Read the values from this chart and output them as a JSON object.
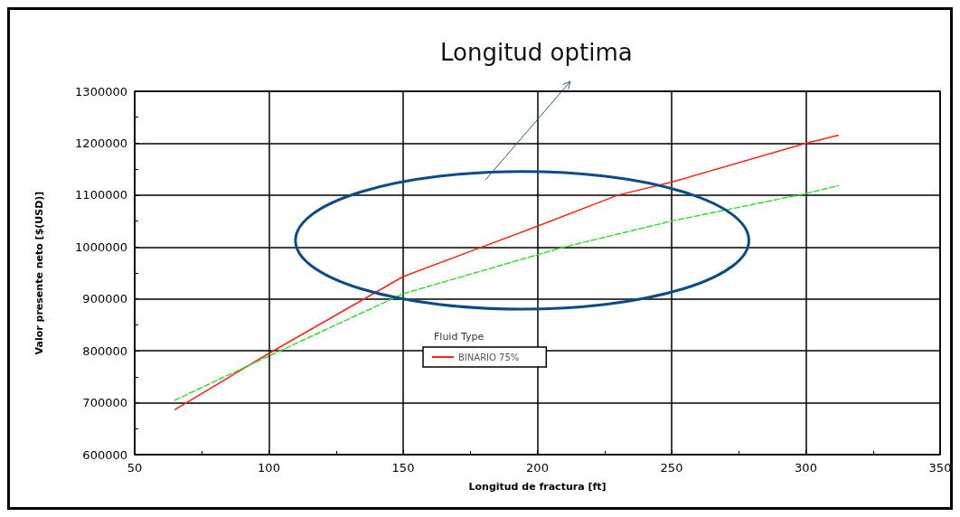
{
  "chart_data": {
    "type": "line",
    "title": "Longitud optima",
    "xlabel": "Longitud de fractura [ft]",
    "ylabel": "Valor presente neto [$(USD)]",
    "legend_title": "Fluid Type",
    "x": [
      65,
      100,
      150,
      200,
      230,
      250,
      300,
      312
    ],
    "series": [
      {
        "name": "BINARIO 75%",
        "color": "#ff2020",
        "line_style": "solid",
        "values": [
          687000,
          795000,
          943000,
          1040000,
          1100000,
          1125000,
          1200000,
          1215000
        ]
      },
      {
        "color": "#33dd33",
        "line_style": "dashed",
        "x": [
          65,
          100,
          150,
          200,
          210,
          250,
          300,
          312
        ],
        "values": [
          705000,
          790000,
          910000,
          985000,
          1000000,
          1050000,
          1103000,
          1118000
        ]
      }
    ],
    "xlim": [
      50,
      350
    ],
    "xticks": [
      50,
      100,
      150,
      200,
      250,
      300,
      350
    ],
    "ylim": [
      600000,
      1300000
    ],
    "yticks": [
      600000,
      700000,
      800000,
      900000,
      1000000,
      1100000,
      1200000,
      1300000
    ],
    "grid": true,
    "legend": "bottom",
    "marker": "none"
  }
}
